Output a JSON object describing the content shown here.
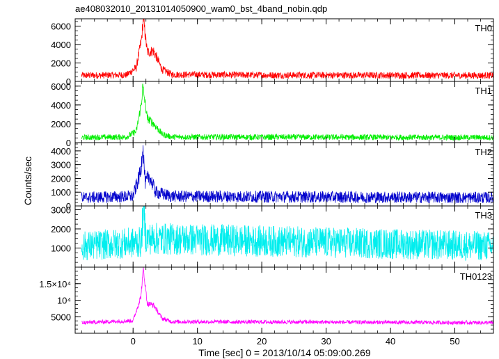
{
  "chart_data": {
    "type": "line",
    "title": "ae408032010_20131014050900_wam0_bst_4band_nobin.qdp",
    "xlabel": "Time [sec] 0 = 2013/10/14 05:09:00.269",
    "ylabel": "Counts/sec",
    "xlim": [
      -9,
      56
    ],
    "x_ticks": [
      0,
      10,
      20,
      30,
      40,
      50
    ],
    "x_tick_labels": [
      "0",
      "10",
      "20",
      "30",
      "40",
      "50"
    ],
    "grid": false,
    "panels": [
      {
        "name": "TH0",
        "color": "#ff0000",
        "ylim": [
          0,
          6800
        ],
        "y_ticks": [
          0,
          2000,
          4000,
          6000
        ],
        "y_tick_labels": [
          "0",
          "2000",
          "4000",
          "6000"
        ],
        "baseline": 650,
        "noise": 300,
        "peaks": [
          [
            1.6,
            5500,
            0.45
          ],
          [
            3.2,
            2200,
            0.8
          ]
        ],
        "profile": [
          [
            -8,
            650
          ],
          [
            -1,
            700
          ],
          [
            0.5,
            1500
          ],
          [
            1.3,
            4500
          ],
          [
            1.6,
            6800
          ],
          [
            2.2,
            3200
          ],
          [
            3.2,
            3300
          ],
          [
            4.5,
            1300
          ],
          [
            6,
            750
          ],
          [
            20,
            680
          ],
          [
            56,
            650
          ]
        ]
      },
      {
        "name": "TH1",
        "color": "#00ee00",
        "ylim": [
          0,
          6500
        ],
        "y_ticks": [
          0,
          2000,
          4000,
          6000
        ],
        "y_tick_labels": [
          "0",
          "2000",
          "4000",
          "6000"
        ],
        "baseline": 550,
        "noise": 250,
        "peaks": [
          [
            1.5,
            5400,
            0.4
          ],
          [
            2.6,
            2000,
            0.9
          ]
        ],
        "profile": [
          [
            -8,
            550
          ],
          [
            -1,
            600
          ],
          [
            0.5,
            1200
          ],
          [
            1.3,
            4200
          ],
          [
            1.5,
            6000
          ],
          [
            2.2,
            2600
          ],
          [
            3.2,
            2000
          ],
          [
            4.5,
            900
          ],
          [
            6,
            600
          ],
          [
            56,
            550
          ]
        ]
      },
      {
        "name": "TH2",
        "color": "#0000cc",
        "ylim": [
          0,
          4600
        ],
        "y_ticks": [
          0,
          1000,
          2000,
          3000,
          4000
        ],
        "y_tick_labels": [
          "0",
          "1000",
          "2000",
          "3000",
          "4000"
        ],
        "baseline": 600,
        "noise": 350,
        "peaks": [
          [
            1.5,
            3600,
            0.3
          ],
          [
            2.4,
            1400,
            0.5
          ]
        ],
        "profile": [
          [
            -8,
            600
          ],
          [
            0,
            700
          ],
          [
            1.2,
            2500
          ],
          [
            1.5,
            4500
          ],
          [
            1.9,
            1600
          ],
          [
            2.5,
            2200
          ],
          [
            3.5,
            1000
          ],
          [
            6,
            700
          ],
          [
            56,
            600
          ]
        ]
      },
      {
        "name": "TH3",
        "color": "#00eeee",
        "ylim": [
          0,
          3200
        ],
        "y_ticks": [
          1000,
          2000,
          3000
        ],
        "y_tick_labels": [
          "1000",
          "2000",
          "3000"
        ],
        "baseline": 1100,
        "noise": 650,
        "peaks": [
          [
            1.6,
            1700,
            0.25
          ]
        ],
        "profile": [
          [
            -8,
            1100
          ],
          [
            1.3,
            1300
          ],
          [
            1.6,
            3200
          ],
          [
            2.0,
            1500
          ],
          [
            56,
            1100
          ]
        ]
      },
      {
        "name": "TH0123",
        "color": "#ff00ff",
        "ylim": [
          0,
          20000
        ],
        "y_ticks": [
          5000,
          10000,
          15000
        ],
        "y_tick_labels": [
          "5000",
          "10⁴",
          "1.5×10⁴"
        ],
        "baseline": 3200,
        "noise": 500,
        "peaks": [
          [
            1.6,
            13500,
            0.4
          ],
          [
            3.0,
            4500,
            0.8
          ]
        ],
        "profile": [
          [
            -8,
            3200
          ],
          [
            0,
            3800
          ],
          [
            1.2,
            11000
          ],
          [
            1.6,
            19500
          ],
          [
            2.2,
            9000
          ],
          [
            3.2,
            8500
          ],
          [
            4.5,
            4500
          ],
          [
            6,
            3500
          ],
          [
            56,
            3200
          ]
        ]
      }
    ]
  }
}
